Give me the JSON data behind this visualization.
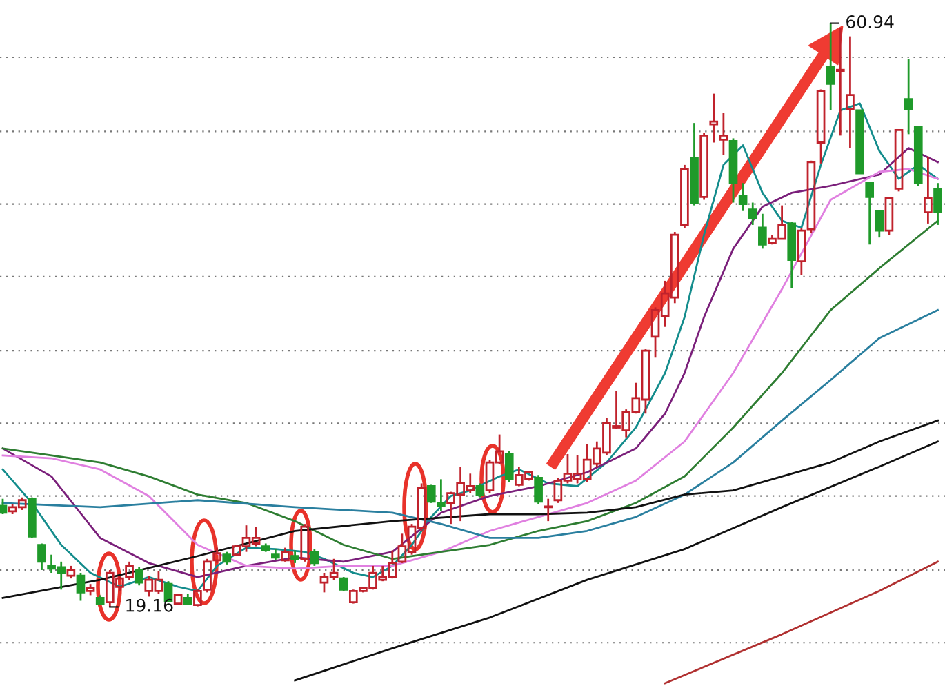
{
  "chart_data": {
    "type": "candlestick",
    "categories": [
      null,
      null,
      null,
      null,
      null,
      null,
      null,
      null,
      null,
      null,
      null,
      null,
      null,
      null,
      null,
      null,
      null,
      null,
      null,
      null,
      null,
      null,
      null,
      null,
      null,
      null,
      null,
      null,
      null,
      null,
      null,
      null,
      null,
      null,
      null,
      null,
      null,
      null,
      null,
      null,
      null,
      null,
      null,
      null,
      null,
      null,
      null,
      null,
      null,
      null,
      null,
      null,
      null,
      null,
      null,
      null,
      null,
      null,
      null,
      null,
      null,
      null,
      null,
      null,
      null,
      null,
      null,
      null,
      null,
      null,
      null,
      null,
      null,
      null,
      null,
      null,
      null,
      null,
      null,
      null,
      null,
      null,
      null,
      null,
      null,
      null,
      null,
      null,
      null,
      null,
      null,
      null,
      null,
      null,
      null,
      null,
      null
    ],
    "ohlc": [
      [
        26.4,
        26.9,
        25.8,
        25.9
      ],
      [
        26.0,
        26.5,
        25.8,
        26.3
      ],
      [
        26.3,
        27.0,
        26.1,
        26.8
      ],
      [
        26.9,
        27.0,
        24.1,
        24.2
      ],
      [
        23.6,
        23.7,
        21.8,
        22.4
      ],
      [
        22.1,
        22.9,
        21.6,
        21.9
      ],
      [
        22.0,
        22.4,
        20.4,
        21.6
      ],
      [
        21.4,
        22.1,
        21.2,
        21.8
      ],
      [
        21.4,
        21.6,
        19.6,
        20.2
      ],
      [
        20.3,
        20.8,
        20.0,
        20.5
      ],
      [
        19.8,
        20.0,
        19.3,
        19.4
      ],
      [
        19.5,
        21.8,
        19.16,
        21.6
      ],
      [
        20.6,
        21.4,
        20.3,
        21.2
      ],
      [
        21.3,
        22.4,
        21.1,
        22.1
      ],
      [
        21.8,
        22.0,
        20.7,
        20.9
      ],
      [
        20.3,
        21.4,
        19.9,
        21.1
      ],
      [
        20.3,
        21.7,
        20.1,
        21.1
      ],
      [
        20.8,
        21.0,
        19.5,
        19.6
      ],
      [
        19.4,
        20.1,
        19.3,
        20.0
      ],
      [
        19.8,
        20.1,
        19.3,
        19.4
      ],
      [
        19.3,
        20.4,
        19.2,
        20.3
      ],
      [
        20.4,
        22.6,
        20.2,
        22.4
      ],
      [
        22.5,
        23.4,
        22.3,
        23.0
      ],
      [
        22.9,
        23.1,
        22.2,
        22.4
      ],
      [
        22.9,
        23.6,
        22.8,
        23.5
      ],
      [
        23.5,
        25.0,
        23.1,
        24.1
      ],
      [
        23.7,
        24.9,
        23.5,
        24.1
      ],
      [
        23.5,
        23.7,
        23.1,
        23.2
      ],
      [
        22.9,
        23.3,
        22.5,
        22.7
      ],
      [
        22.5,
        23.4,
        22.4,
        23.1
      ],
      [
        22.8,
        23.2,
        22.3,
        22.6
      ],
      [
        22.6,
        25.1,
        22.4,
        24.9
      ],
      [
        23.1,
        23.3,
        22.1,
        22.3
      ],
      [
        20.9,
        21.6,
        20.2,
        21.3
      ],
      [
        21.3,
        22.6,
        21.1,
        21.6
      ],
      [
        21.2,
        21.3,
        20.3,
        20.4
      ],
      [
        19.5,
        20.4,
        19.4,
        20.3
      ],
      [
        20.3,
        20.6,
        20.2,
        20.5
      ],
      [
        20.5,
        22.1,
        20.4,
        21.6
      ],
      [
        21.1,
        22.1,
        21.0,
        21.3
      ],
      [
        21.3,
        23.2,
        21.2,
        22.3
      ],
      [
        22.4,
        24.4,
        22.3,
        23.5
      ],
      [
        23.1,
        25.1,
        22.9,
        24.9
      ],
      [
        24.8,
        28.0,
        24.6,
        27.7
      ],
      [
        27.8,
        27.9,
        26.6,
        26.7
      ],
      [
        26.6,
        28.3,
        26.0,
        26.4
      ],
      [
        26.6,
        27.4,
        25.1,
        27.3
      ],
      [
        27.2,
        29.2,
        25.3,
        28.0
      ],
      [
        27.5,
        28.7,
        27.3,
        27.8
      ],
      [
        27.8,
        28.0,
        27.0,
        27.2
      ],
      [
        27.5,
        29.7,
        27.3,
        29.5
      ],
      [
        29.5,
        31.5,
        29.4,
        30.3
      ],
      [
        30.1,
        30.3,
        28.1,
        28.3
      ],
      [
        27.9,
        29.2,
        27.8,
        28.6
      ],
      [
        28.3,
        28.9,
        28.2,
        28.8
      ],
      [
        28.4,
        28.6,
        26.5,
        26.7
      ],
      [
        26.3,
        26.9,
        25.3,
        26.3
      ],
      [
        26.8,
        28.4,
        26.6,
        28.2
      ],
      [
        28.2,
        30.1,
        28.0,
        28.7
      ],
      [
        28.3,
        30.0,
        28.0,
        28.7
      ],
      [
        28.3,
        30.8,
        28.1,
        29.7
      ],
      [
        29.4,
        31.0,
        29.2,
        30.5
      ],
      [
        30.2,
        32.7,
        30.0,
        32.3
      ],
      [
        32.0,
        34.6,
        31.9,
        32.1
      ],
      [
        31.8,
        33.3,
        31.3,
        33.1
      ],
      [
        33.1,
        35.2,
        33.0,
        34.1
      ],
      [
        34.0,
        37.6,
        33.0,
        37.5
      ],
      [
        38.5,
        40.6,
        37.0,
        40.4
      ],
      [
        40.0,
        42.5,
        39.2,
        41.6
      ],
      [
        41.3,
        46.0,
        40.9,
        45.8
      ],
      [
        46.5,
        50.8,
        46.3,
        50.5
      ],
      [
        51.3,
        53.8,
        47.9,
        48.1
      ],
      [
        48.5,
        53.1,
        48.3,
        52.9
      ],
      [
        53.7,
        55.9,
        52.4,
        53.9
      ],
      [
        52.6,
        54.5,
        51.5,
        52.9
      ],
      [
        52.5,
        52.7,
        48.1,
        49.5
      ],
      [
        48.6,
        49.5,
        47.5,
        48.0
      ],
      [
        47.6,
        48.1,
        46.5,
        47.0
      ],
      [
        46.3,
        47.3,
        44.8,
        45.1
      ],
      [
        45.2,
        45.8,
        45.1,
        45.5
      ],
      [
        45.5,
        47.9,
        45.5,
        46.5
      ],
      [
        46.6,
        46.7,
        42.0,
        44.0
      ],
      [
        43.9,
        46.3,
        42.9,
        46.1
      ],
      [
        46.2,
        51.1,
        45.9,
        51.0
      ],
      [
        52.4,
        56.2,
        50.9,
        56.1
      ],
      [
        57.8,
        60.94,
        54.7,
        56.6
      ],
      [
        57.5,
        60.6,
        52.9,
        57.6
      ],
      [
        54.8,
        60.0,
        52.0,
        55.8
      ],
      [
        54.7,
        54.7,
        50.2,
        50.2
      ],
      [
        49.5,
        49.5,
        45.1,
        48.5
      ],
      [
        47.5,
        47.5,
        45.6,
        46.1
      ],
      [
        46.1,
        48.4,
        45.8,
        48.4
      ],
      [
        49.1,
        53.3,
        48.9,
        53.3
      ],
      [
        55.5,
        58.4,
        53.0,
        54.8
      ],
      [
        53.5,
        53.5,
        49.3,
        49.5
      ],
      [
        47.4,
        51.4,
        46.6,
        48.4
      ],
      [
        49.1,
        49.5,
        46.5,
        47.4
      ]
    ],
    "series": [
      {
        "type": "line",
        "color": "#138c8c",
        "values": [
          29.0,
          null,
          null,
          26.6,
          null,
          null,
          23.6,
          null,
          null,
          21.6,
          null,
          null,
          20.6,
          null,
          null,
          21.3,
          null,
          null,
          20.6,
          null,
          20.3,
          null,
          22.1,
          null,
          null,
          23.4,
          null,
          null,
          23.3,
          null,
          null,
          23.1,
          null,
          22.6,
          null,
          null,
          21.6,
          null,
          21.3,
          null,
          22.1,
          null,
          23.6,
          null,
          25.6,
          null,
          27.1,
          null,
          27.5,
          null,
          null,
          28.5,
          null,
          29.0,
          null,
          null,
          28.0,
          null,
          null,
          27.8,
          null,
          null,
          29.5,
          null,
          null,
          32.0,
          null,
          null,
          35.9,
          null,
          39.9,
          null,
          45.8,
          null,
          50.8,
          null,
          52.2,
          null,
          48.8,
          null,
          46.8,
          null,
          46.3,
          null,
          50.8,
          null,
          54.7,
          null,
          55.2,
          null,
          51.8,
          null,
          49.8,
          null,
          50.8,
          null,
          49.8
        ]
      },
      {
        "type": "line",
        "color": "#7a1f7a",
        "values": [
          30.5,
          null,
          null,
          null,
          null,
          28.5,
          null,
          null,
          null,
          null,
          24.1,
          null,
          null,
          null,
          null,
          22.3,
          null,
          null,
          null,
          null,
          21.3,
          null,
          null,
          null,
          null,
          22.1,
          null,
          null,
          null,
          null,
          22.7,
          null,
          null,
          null,
          null,
          22.4,
          null,
          null,
          null,
          null,
          23.1,
          null,
          null,
          null,
          null,
          25.9,
          null,
          null,
          null,
          null,
          27.1,
          null,
          null,
          null,
          null,
          27.8,
          null,
          null,
          null,
          null,
          28.8,
          null,
          null,
          null,
          null,
          30.5,
          null,
          null,
          33.0,
          null,
          35.9,
          null,
          39.9,
          null,
          null,
          44.8,
          null,
          null,
          47.8,
          null,
          null,
          48.8,
          null,
          null,
          null,
          49.3,
          null,
          null,
          null,
          null,
          50.1,
          null,
          null,
          52.0,
          null,
          null,
          51.0
        ]
      },
      {
        "type": "line",
        "color": "#e080e0",
        "values": [
          30.0,
          null,
          null,
          null,
          null,
          29.8,
          null,
          null,
          null,
          null,
          29.0,
          null,
          null,
          null,
          null,
          27.1,
          null,
          null,
          null,
          null,
          23.6,
          null,
          null,
          null,
          null,
          22.1,
          null,
          null,
          null,
          null,
          21.9,
          null,
          null,
          null,
          null,
          22.1,
          null,
          null,
          null,
          null,
          22.1,
          null,
          null,
          null,
          null,
          23.1,
          null,
          null,
          null,
          null,
          24.6,
          null,
          null,
          null,
          null,
          25.6,
          null,
          null,
          null,
          null,
          26.6,
          null,
          null,
          null,
          null,
          28.2,
          null,
          null,
          null,
          null,
          31.0,
          null,
          null,
          null,
          null,
          35.9,
          null,
          null,
          null,
          null,
          41.9,
          null,
          null,
          null,
          null,
          48.3,
          null,
          null,
          null,
          null,
          50.3,
          null,
          null,
          50.5,
          null,
          null,
          49.8
        ]
      },
      {
        "type": "line",
        "color": "#2e7d32",
        "values": [
          30.5,
          null,
          null,
          null,
          null,
          30.0,
          null,
          null,
          null,
          null,
          29.5,
          null,
          null,
          null,
          null,
          28.5,
          null,
          null,
          null,
          null,
          27.2,
          null,
          null,
          null,
          null,
          26.6,
          null,
          null,
          null,
          null,
          25.3,
          null,
          null,
          null,
          null,
          23.6,
          null,
          null,
          null,
          null,
          22.6,
          null,
          null,
          null,
          null,
          23.1,
          null,
          null,
          null,
          null,
          23.6,
          null,
          null,
          null,
          null,
          24.6,
          null,
          null,
          null,
          null,
          25.3,
          null,
          null,
          null,
          null,
          26.6,
          null,
          null,
          null,
          null,
          28.5,
          null,
          null,
          null,
          null,
          32.0,
          null,
          null,
          null,
          null,
          35.9,
          null,
          null,
          null,
          null,
          40.4,
          null,
          null,
          null,
          null,
          43.4,
          null,
          null,
          null,
          null,
          null,
          46.8
        ]
      },
      {
        "type": "line",
        "color": "#2a7f9f",
        "values": [
          26.6,
          null,
          null,
          null,
          null,
          null,
          null,
          null,
          null,
          null,
          26.3,
          null,
          null,
          null,
          null,
          null,
          null,
          null,
          null,
          null,
          26.8,
          null,
          null,
          null,
          null,
          null,
          null,
          null,
          null,
          null,
          26.3,
          null,
          null,
          null,
          null,
          null,
          null,
          null,
          null,
          null,
          25.9,
          null,
          null,
          null,
          null,
          25.1,
          null,
          null,
          null,
          null,
          24.1,
          null,
          null,
          null,
          null,
          24.1,
          null,
          null,
          null,
          null,
          24.6,
          null,
          null,
          null,
          null,
          25.6,
          null,
          null,
          null,
          null,
          27.2,
          null,
          null,
          null,
          null,
          29.5,
          null,
          null,
          null,
          null,
          32.5,
          null,
          null,
          null,
          null,
          35.4,
          null,
          null,
          null,
          null,
          38.4,
          null,
          null,
          null,
          null,
          null,
          40.4
        ]
      },
      {
        "type": "line",
        "color": "#111111",
        "values": [
          19.8,
          null,
          null,
          null,
          null,
          null,
          null,
          null,
          null,
          null,
          21.1,
          null,
          null,
          null,
          null,
          null,
          null,
          null,
          null,
          null,
          22.8,
          null,
          null,
          null,
          null,
          null,
          null,
          null,
          null,
          null,
          24.6,
          null,
          null,
          null,
          null,
          null,
          null,
          null,
          null,
          null,
          25.3,
          null,
          null,
          null,
          null,
          null,
          null,
          null,
          null,
          null,
          25.8,
          null,
          null,
          null,
          null,
          25.8,
          null,
          null,
          null,
          null,
          25.9,
          null,
          null,
          null,
          null,
          26.3,
          null,
          null,
          null,
          null,
          27.2,
          null,
          null,
          null,
          null,
          27.5,
          null,
          null,
          null,
          null,
          28.5,
          null,
          null,
          null,
          null,
          29.5,
          null,
          null,
          null,
          null,
          31.0,
          null,
          null,
          null,
          null,
          null,
          32.5
        ]
      },
      {
        "type": "line",
        "color": "#111111",
        "values": [
          null,
          null,
          null,
          null,
          null,
          null,
          null,
          null,
          null,
          null,
          null,
          null,
          null,
          null,
          null,
          null,
          null,
          null,
          null,
          null,
          null,
          null,
          null,
          null,
          null,
          null,
          null,
          null,
          null,
          null,
          13.9,
          null,
          null,
          null,
          null,
          null,
          null,
          null,
          null,
          null,
          16.2,
          null,
          null,
          null,
          null,
          null,
          null,
          null,
          null,
          null,
          18.4,
          null,
          null,
          null,
          null,
          null,
          null,
          null,
          null,
          null,
          21.1,
          null,
          null,
          null,
          null,
          null,
          null,
          null,
          null,
          null,
          23.3,
          null,
          null,
          null,
          null,
          null,
          null,
          null,
          null,
          null,
          26.3,
          null,
          null,
          null,
          null,
          null,
          null,
          null,
          null,
          null,
          29.2,
          null,
          null,
          null,
          null,
          null,
          31.0
        ]
      },
      {
        "type": "line",
        "color": "#b03030",
        "values": [
          null,
          null,
          null,
          null,
          null,
          null,
          null,
          null,
          null,
          null,
          null,
          null,
          null,
          null,
          null,
          null,
          null,
          null,
          null,
          null,
          null,
          null,
          null,
          null,
          null,
          null,
          null,
          null,
          null,
          null,
          null,
          null,
          null,
          null,
          null,
          null,
          null,
          null,
          null,
          null,
          null,
          null,
          null,
          null,
          null,
          null,
          null,
          null,
          null,
          null,
          null,
          null,
          null,
          null,
          null,
          null,
          null,
          null,
          null,
          null,
          null,
          null,
          null,
          null,
          null,
          null,
          null,
          null,
          13.7,
          null,
          null,
          null,
          null,
          null,
          null,
          null,
          null,
          null,
          null,
          null,
          17.2,
          null,
          null,
          null,
          null,
          null,
          null,
          null,
          null,
          null,
          20.3,
          null,
          null,
          null,
          null,
          null,
          22.4
        ]
      }
    ],
    "ylim": [
      13.5,
      62.6
    ],
    "yticks": [
      {
        "value": 16.6,
        "label": null
      },
      {
        "value": 21.8,
        "label": null
      },
      {
        "value": 27.1,
        "label": null
      },
      {
        "value": 32.3,
        "label": null
      },
      {
        "value": 37.5,
        "label": null
      },
      {
        "value": 42.8,
        "label": null
      },
      {
        "value": 48.0,
        "label": null
      },
      {
        "value": 53.2,
        "label": null
      },
      {
        "value": 58.5,
        "label": null
      }
    ],
    "grid": "y",
    "annotations": [
      "60.94",
      "19.16"
    ]
  }
}
